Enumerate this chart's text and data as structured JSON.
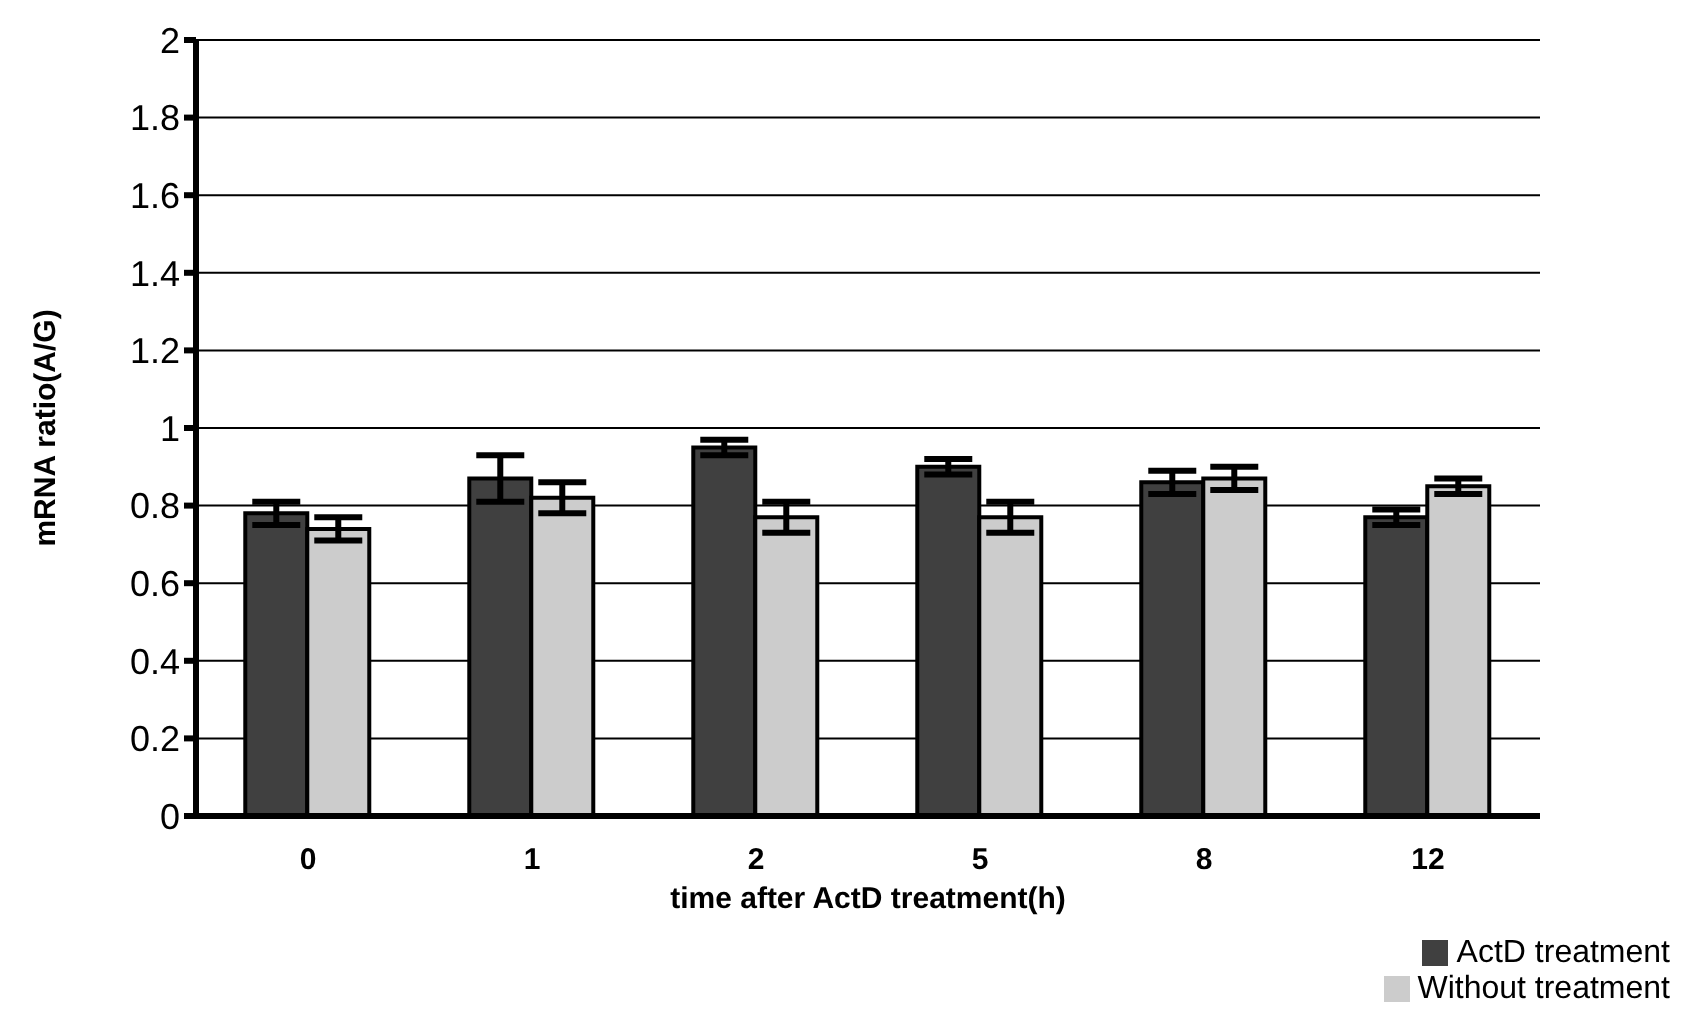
{
  "chart_data": {
    "type": "bar",
    "xlabel": "time after ActD treatment(h)",
    "ylabel": "mRNA ratio(A/G)",
    "categories": [
      "0",
      "1",
      "2",
      "5",
      "8",
      "12"
    ],
    "series": [
      {
        "name": "ActD treatment",
        "color": "#404040",
        "values": [
          0.78,
          0.87,
          0.95,
          0.9,
          0.86,
          0.77
        ],
        "errors": [
          0.03,
          0.06,
          0.02,
          0.02,
          0.03,
          0.02
        ]
      },
      {
        "name": "Without treatment",
        "color": "#cccccc",
        "values": [
          0.74,
          0.82,
          0.77,
          0.77,
          0.87,
          0.85
        ],
        "errors": [
          0.03,
          0.04,
          0.04,
          0.04,
          0.03,
          0.02
        ]
      }
    ],
    "ylim": [
      0,
      2
    ],
    "yticks": [
      0,
      0.2,
      0.4,
      0.6,
      0.8,
      1,
      1.2,
      1.4,
      1.6,
      1.8,
      2
    ],
    "grid": "y",
    "legend": "bottom right"
  }
}
